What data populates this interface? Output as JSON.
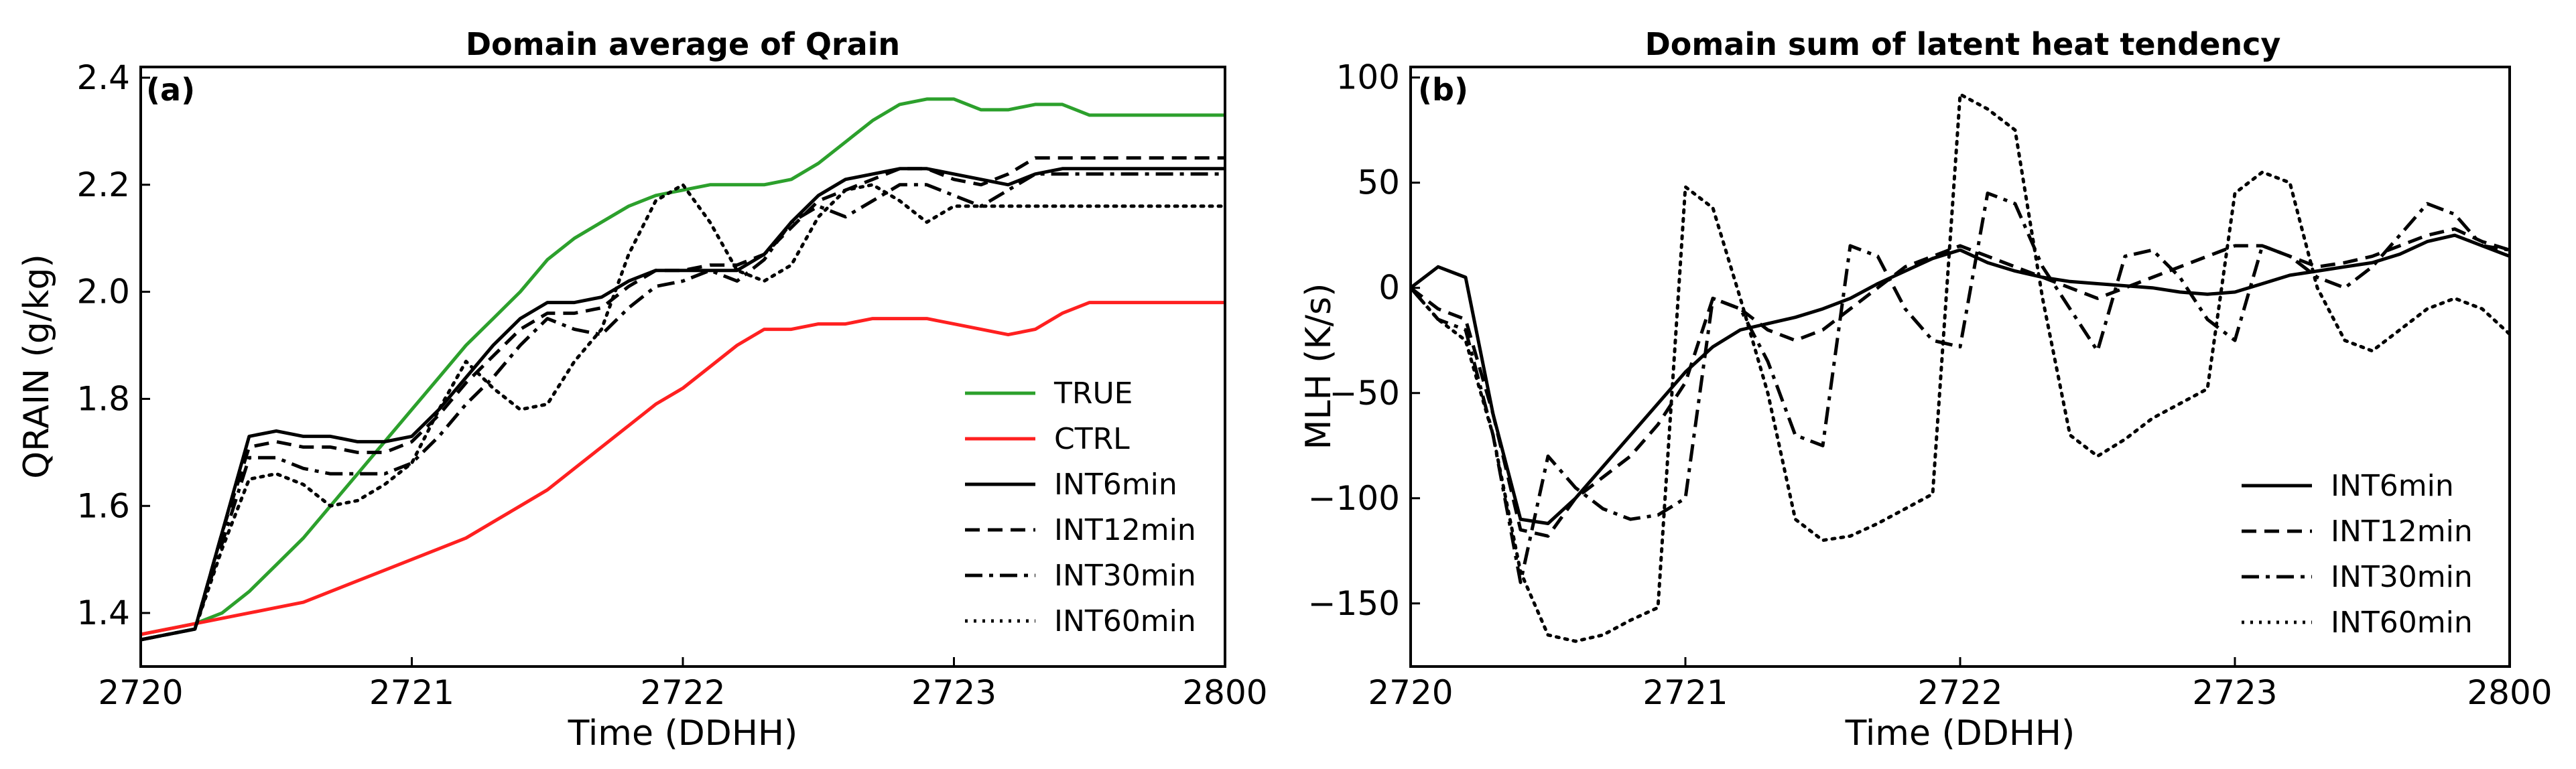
{
  "chart_data": [
    {
      "type": "line",
      "panel_label": "(a)",
      "title": "Domain average of Qrain",
      "xlabel": "Time (DDHH)",
      "ylabel": "QRAIN (g/kg)",
      "xlim": [
        0,
        4
      ],
      "ylim": [
        1.3,
        2.42
      ],
      "xticks": [
        0,
        1,
        2,
        3,
        4
      ],
      "xtick_labels": [
        "2720",
        "2721",
        "2722",
        "2723",
        "2800"
      ],
      "yticks": [
        1.4,
        1.6,
        1.8,
        2.0,
        2.2,
        2.4
      ],
      "ytick_labels": [
        "1.4",
        "1.6",
        "1.8",
        "2.0",
        "2.2",
        "2.4"
      ],
      "legend_position": "lower-right",
      "x": [
        0,
        0.1,
        0.2,
        0.3,
        0.4,
        0.5,
        0.6,
        0.7,
        0.8,
        0.9,
        1.0,
        1.1,
        1.2,
        1.3,
        1.4,
        1.5,
        1.6,
        1.7,
        1.8,
        1.9,
        2.0,
        2.1,
        2.2,
        2.3,
        2.4,
        2.5,
        2.6,
        2.7,
        2.8,
        2.9,
        3.0,
        3.1,
        3.2,
        3.3,
        3.4,
        3.5,
        3.6,
        3.7,
        3.8,
        3.9,
        4.0
      ],
      "series": [
        {
          "name": "TRUE",
          "color": "#2ca02c",
          "dash": "solid",
          "values": [
            1.36,
            1.37,
            1.38,
            1.4,
            1.44,
            1.49,
            1.54,
            1.6,
            1.66,
            1.72,
            1.78,
            1.84,
            1.9,
            1.95,
            2.0,
            2.06,
            2.1,
            2.13,
            2.16,
            2.18,
            2.19,
            2.2,
            2.2,
            2.2,
            2.21,
            2.24,
            2.28,
            2.32,
            2.35,
            2.36,
            2.36,
            2.34,
            2.34,
            2.35,
            2.35,
            2.33,
            2.33,
            2.33,
            2.33,
            2.33,
            2.33
          ]
        },
        {
          "name": "CTRL",
          "color": "#ff2020",
          "dash": "solid",
          "values": [
            1.36,
            1.37,
            1.38,
            1.39,
            1.4,
            1.41,
            1.42,
            1.44,
            1.46,
            1.48,
            1.5,
            1.52,
            1.54,
            1.57,
            1.6,
            1.63,
            1.67,
            1.71,
            1.75,
            1.79,
            1.82,
            1.86,
            1.9,
            1.93,
            1.93,
            1.94,
            1.94,
            1.95,
            1.95,
            1.95,
            1.94,
            1.93,
            1.92,
            1.93,
            1.96,
            1.98,
            1.98,
            1.98,
            1.98,
            1.98,
            1.98
          ]
        },
        {
          "name": "INT6min",
          "color": "#000000",
          "dash": "solid",
          "values": [
            1.35,
            1.36,
            1.37,
            1.55,
            1.73,
            1.74,
            1.73,
            1.73,
            1.72,
            1.72,
            1.73,
            1.78,
            1.84,
            1.9,
            1.95,
            1.98,
            1.98,
            1.99,
            2.02,
            2.04,
            2.04,
            2.04,
            2.04,
            2.07,
            2.13,
            2.18,
            2.21,
            2.22,
            2.23,
            2.23,
            2.22,
            2.21,
            2.2,
            2.22,
            2.23,
            2.23,
            2.23,
            2.23,
            2.23,
            2.23,
            2.23
          ]
        },
        {
          "name": "INT12min",
          "color": "#000000",
          "dash": "dashed",
          "values": [
            1.35,
            1.36,
            1.37,
            1.55,
            1.71,
            1.72,
            1.71,
            1.71,
            1.7,
            1.7,
            1.72,
            1.77,
            1.83,
            1.88,
            1.93,
            1.96,
            1.96,
            1.97,
            2.01,
            2.04,
            2.04,
            2.05,
            2.05,
            2.07,
            2.12,
            2.17,
            2.19,
            2.21,
            2.23,
            2.23,
            2.21,
            2.2,
            2.22,
            2.25,
            2.25,
            2.25,
            2.25,
            2.25,
            2.25,
            2.25,
            2.25
          ]
        },
        {
          "name": "INT30min",
          "color": "#000000",
          "dash": "dashdot",
          "values": [
            1.35,
            1.36,
            1.37,
            1.53,
            1.69,
            1.69,
            1.67,
            1.66,
            1.66,
            1.66,
            1.68,
            1.73,
            1.79,
            1.84,
            1.9,
            1.95,
            1.93,
            1.92,
            1.97,
            2.01,
            2.02,
            2.04,
            2.02,
            2.06,
            2.13,
            2.16,
            2.14,
            2.17,
            2.2,
            2.2,
            2.18,
            2.16,
            2.19,
            2.22,
            2.22,
            2.22,
            2.22,
            2.22,
            2.22,
            2.22,
            2.22
          ]
        },
        {
          "name": "INT60min",
          "color": "#000000",
          "dash": "dotted",
          "values": [
            1.35,
            1.36,
            1.37,
            1.52,
            1.65,
            1.66,
            1.64,
            1.6,
            1.61,
            1.64,
            1.68,
            1.78,
            1.87,
            1.82,
            1.78,
            1.79,
            1.87,
            1.93,
            2.07,
            2.17,
            2.2,
            2.13,
            2.04,
            2.02,
            2.05,
            2.14,
            2.19,
            2.2,
            2.17,
            2.13,
            2.16,
            2.16,
            2.16,
            2.16,
            2.16,
            2.16,
            2.16,
            2.16,
            2.16,
            2.16,
            2.16
          ]
        }
      ]
    },
    {
      "type": "line",
      "panel_label": "(b)",
      "title": "Domain sum of latent heat tendency",
      "xlabel": "Time (DDHH)",
      "ylabel": "MLH (K/s)",
      "xlim": [
        0,
        4
      ],
      "ylim": [
        -180,
        105
      ],
      "xticks": [
        0,
        1,
        2,
        3,
        4
      ],
      "xtick_labels": [
        "2720",
        "2721",
        "2722",
        "2723",
        "2800"
      ],
      "yticks": [
        -150,
        -100,
        -50,
        0,
        50,
        100
      ],
      "ytick_labels": [
        "−150",
        "−100",
        "−50",
        "0",
        "50",
        "100"
      ],
      "legend_position": "lower-right",
      "x": [
        0,
        0.1,
        0.2,
        0.3,
        0.4,
        0.5,
        0.6,
        0.7,
        0.8,
        0.9,
        1.0,
        1.1,
        1.2,
        1.3,
        1.4,
        1.5,
        1.6,
        1.7,
        1.8,
        1.9,
        2.0,
        2.1,
        2.2,
        2.3,
        2.4,
        2.5,
        2.6,
        2.7,
        2.8,
        2.9,
        3.0,
        3.1,
        3.2,
        3.3,
        3.4,
        3.5,
        3.6,
        3.7,
        3.8,
        3.9,
        4.0
      ],
      "series": [
        {
          "name": "INT6min",
          "color": "#000000",
          "dash": "solid",
          "values": [
            0,
            10,
            5,
            -60,
            -110,
            -112,
            -100,
            -85,
            -70,
            -55,
            -40,
            -28,
            -20,
            -17,
            -14,
            -10,
            -5,
            2,
            8,
            14,
            18,
            12,
            8,
            5,
            3,
            2,
            1,
            0,
            -2,
            -3,
            -2,
            2,
            6,
            8,
            10,
            12,
            16,
            22,
            25,
            20,
            15
          ]
        },
        {
          "name": "INT12min",
          "color": "#000000",
          "dash": "dashed",
          "values": [
            0,
            -10,
            -15,
            -60,
            -115,
            -118,
            -100,
            -90,
            -80,
            -65,
            -45,
            -5,
            -10,
            -20,
            -25,
            -20,
            -10,
            0,
            10,
            15,
            20,
            15,
            10,
            5,
            0,
            -5,
            0,
            5,
            10,
            15,
            20,
            20,
            15,
            10,
            12,
            15,
            20,
            25,
            28,
            22,
            18
          ]
        },
        {
          "name": "INT30min",
          "color": "#000000",
          "dash": "dashdot",
          "values": [
            0,
            -15,
            -20,
            -70,
            -140,
            -80,
            -95,
            -105,
            -110,
            -108,
            -100,
            -5,
            -10,
            -35,
            -70,
            -75,
            20,
            15,
            -10,
            -25,
            -28,
            45,
            40,
            10,
            -10,
            -30,
            15,
            18,
            5,
            -15,
            -25,
            20,
            15,
            5,
            0,
            10,
            25,
            40,
            35,
            20,
            18
          ]
        },
        {
          "name": "INT60min",
          "color": "#000000",
          "dash": "dotted",
          "values": [
            0,
            -15,
            -25,
            -70,
            -135,
            -165,
            -168,
            -165,
            -158,
            -152,
            48,
            38,
            -5,
            -50,
            -110,
            -120,
            -118,
            -112,
            -105,
            -98,
            92,
            85,
            75,
            -5,
            -70,
            -80,
            -72,
            -62,
            -55,
            -48,
            45,
            55,
            50,
            0,
            -25,
            -30,
            -20,
            -10,
            -5,
            -10,
            -22
          ]
        }
      ]
    }
  ]
}
